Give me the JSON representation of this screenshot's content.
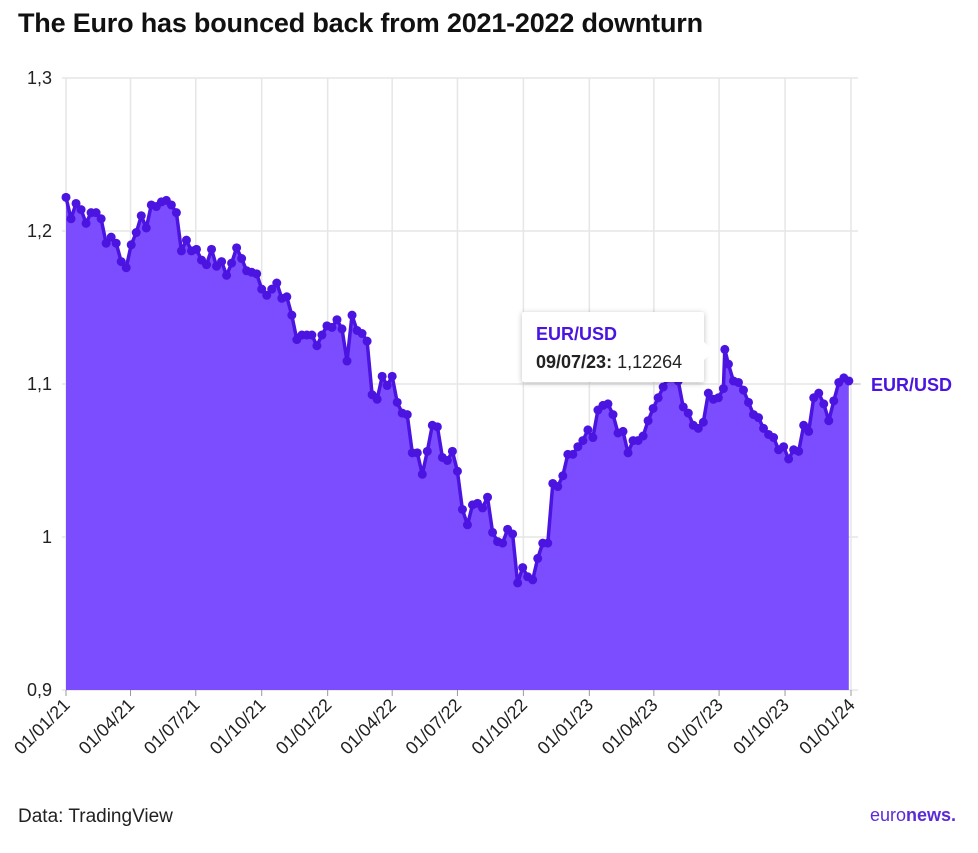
{
  "title": "The Euro has bounced back from 2021-2022 downturn",
  "source": "Data: TradingView",
  "logo": {
    "part1": "euro",
    "part2": "news."
  },
  "tooltip": {
    "series": "EUR/USD",
    "date": "09/07/23:",
    "value": "1,12264"
  },
  "colors": {
    "line": "#4b14e0",
    "area": "#7c4dff",
    "grid": "#e6e6e6",
    "text": "#222222"
  },
  "chart_data": {
    "type": "area",
    "title": "The Euro has bounced back from 2021-2022 downturn",
    "xlabel": "",
    "ylabel": "",
    "ylim": [
      0.9,
      1.3
    ],
    "y_ticks": [
      0.9,
      1.0,
      1.1,
      1.2,
      1.3
    ],
    "y_tick_labels": [
      "0,9",
      "1",
      "1,1",
      "1,2",
      "1,3"
    ],
    "x_ticks": [
      "2021-01-01",
      "2021-04-01",
      "2021-07-01",
      "2021-10-01",
      "2022-01-01",
      "2022-04-01",
      "2022-07-01",
      "2022-10-01",
      "2023-01-01",
      "2023-04-01",
      "2023-07-01",
      "2023-10-01",
      "2024-01-01"
    ],
    "x_tick_labels": [
      "01/01/21",
      "01/04/21",
      "01/07/21",
      "01/10/21",
      "01/01/22",
      "01/04/22",
      "01/07/22",
      "01/10/22",
      "01/01/23",
      "01/04/23",
      "01/07/23",
      "01/10/23",
      "01/01/24"
    ],
    "grid": true,
    "end_label": "EUR/USD",
    "series": [
      {
        "name": "EUR/USD",
        "x": [
          "2021-01-01",
          "2021-01-08",
          "2021-01-15",
          "2021-01-22",
          "2021-01-29",
          "2021-02-05",
          "2021-02-12",
          "2021-02-19",
          "2021-02-26",
          "2021-03-05",
          "2021-03-12",
          "2021-03-19",
          "2021-03-26",
          "2021-04-02",
          "2021-04-09",
          "2021-04-16",
          "2021-04-23",
          "2021-04-30",
          "2021-05-07",
          "2021-05-14",
          "2021-05-21",
          "2021-05-28",
          "2021-06-04",
          "2021-06-11",
          "2021-06-18",
          "2021-06-25",
          "2021-07-02",
          "2021-07-09",
          "2021-07-16",
          "2021-07-23",
          "2021-07-30",
          "2021-08-06",
          "2021-08-13",
          "2021-08-20",
          "2021-08-27",
          "2021-09-03",
          "2021-09-10",
          "2021-09-17",
          "2021-09-24",
          "2021-10-01",
          "2021-10-08",
          "2021-10-15",
          "2021-10-22",
          "2021-10-29",
          "2021-11-05",
          "2021-11-12",
          "2021-11-19",
          "2021-11-26",
          "2021-12-03",
          "2021-12-10",
          "2021-12-17",
          "2021-12-24",
          "2021-12-31",
          "2022-01-07",
          "2022-01-14",
          "2022-01-21",
          "2022-01-28",
          "2022-02-04",
          "2022-02-11",
          "2022-02-18",
          "2022-02-25",
          "2022-03-04",
          "2022-03-11",
          "2022-03-18",
          "2022-03-25",
          "2022-04-01",
          "2022-04-08",
          "2022-04-15",
          "2022-04-22",
          "2022-04-29",
          "2022-05-06",
          "2022-05-13",
          "2022-05-20",
          "2022-05-27",
          "2022-06-03",
          "2022-06-10",
          "2022-06-17",
          "2022-06-24",
          "2022-07-01",
          "2022-07-08",
          "2022-07-15",
          "2022-07-22",
          "2022-07-29",
          "2022-08-05",
          "2022-08-12",
          "2022-08-19",
          "2022-08-26",
          "2022-09-02",
          "2022-09-09",
          "2022-09-16",
          "2022-09-23",
          "2022-09-30",
          "2022-10-07",
          "2022-10-14",
          "2022-10-21",
          "2022-10-28",
          "2022-11-04",
          "2022-11-11",
          "2022-11-18",
          "2022-11-25",
          "2022-12-02",
          "2022-12-09",
          "2022-12-16",
          "2022-12-23",
          "2022-12-30",
          "2023-01-06",
          "2023-01-13",
          "2023-01-20",
          "2023-01-27",
          "2023-02-03",
          "2023-02-10",
          "2023-02-17",
          "2023-02-24",
          "2023-03-03",
          "2023-03-10",
          "2023-03-17",
          "2023-03-24",
          "2023-03-31",
          "2023-04-07",
          "2023-04-14",
          "2023-04-21",
          "2023-04-28",
          "2023-05-05",
          "2023-05-12",
          "2023-05-19",
          "2023-05-26",
          "2023-06-02",
          "2023-06-09",
          "2023-06-16",
          "2023-06-23",
          "2023-06-30",
          "2023-07-07",
          "2023-07-09",
          "2023-07-14",
          "2023-07-21",
          "2023-07-28",
          "2023-08-04",
          "2023-08-11",
          "2023-08-18",
          "2023-08-25",
          "2023-09-01",
          "2023-09-08",
          "2023-09-15",
          "2023-09-22",
          "2023-09-29",
          "2023-10-06",
          "2023-10-13",
          "2023-10-20",
          "2023-10-27",
          "2023-11-03",
          "2023-11-10",
          "2023-11-17",
          "2023-11-24",
          "2023-12-01",
          "2023-12-08",
          "2023-12-15",
          "2023-12-22",
          "2023-12-29"
        ],
        "y": [
          1.222,
          1.208,
          1.218,
          1.214,
          1.205,
          1.212,
          1.212,
          1.208,
          1.192,
          1.196,
          1.192,
          1.18,
          1.176,
          1.191,
          1.199,
          1.21,
          1.202,
          1.217,
          1.216,
          1.219,
          1.22,
          1.217,
          1.212,
          1.187,
          1.194,
          1.187,
          1.188,
          1.181,
          1.178,
          1.188,
          1.177,
          1.18,
          1.171,
          1.179,
          1.189,
          1.182,
          1.174,
          1.173,
          1.172,
          1.162,
          1.158,
          1.162,
          1.166,
          1.156,
          1.157,
          1.145,
          1.129,
          1.132,
          1.132,
          1.132,
          1.125,
          1.132,
          1.138,
          1.137,
          1.142,
          1.136,
          1.115,
          1.145,
          1.135,
          1.133,
          1.128,
          1.093,
          1.09,
          1.105,
          1.099,
          1.105,
          1.088,
          1.081,
          1.08,
          1.055,
          1.055,
          1.041,
          1.056,
          1.073,
          1.072,
          1.052,
          1.05,
          1.056,
          1.043,
          1.018,
          1.008,
          1.021,
          1.022,
          1.019,
          1.026,
          1.003,
          0.997,
          0.996,
          1.005,
          1.002,
          0.97,
          0.98,
          0.974,
          0.972,
          0.986,
          0.996,
          0.996,
          1.035,
          1.033,
          1.04,
          1.054,
          1.054,
          1.059,
          1.063,
          1.07,
          1.065,
          1.083,
          1.086,
          1.087,
          1.08,
          1.068,
          1.069,
          1.055,
          1.063,
          1.063,
          1.066,
          1.076,
          1.084,
          1.091,
          1.098,
          1.104,
          1.105,
          1.102,
          1.085,
          1.081,
          1.073,
          1.071,
          1.075,
          1.094,
          1.09,
          1.091,
          1.097,
          1.1226,
          1.113,
          1.102,
          1.101,
          1.096,
          1.088,
          1.08,
          1.078,
          1.071,
          1.067,
          1.065,
          1.057,
          1.059,
          1.051,
          1.057,
          1.056,
          1.073,
          1.069,
          1.091,
          1.094,
          1.087,
          1.076,
          1.089,
          1.101,
          1.104,
          1.102
        ]
      }
    ]
  }
}
